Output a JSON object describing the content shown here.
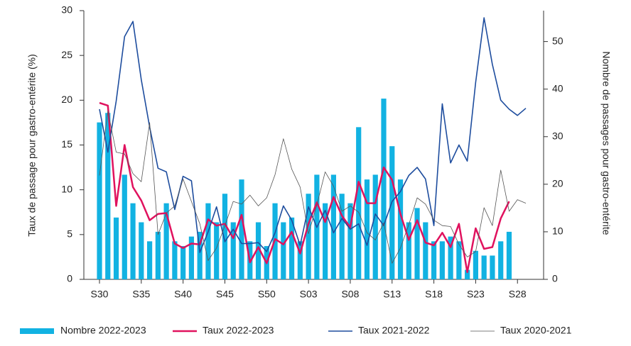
{
  "chart_data": {
    "type": "bar-line",
    "ylabel": "Taux de passage pour gastro-entérite (%)",
    "y2label": "Nombre de passages pour gastro-entérite",
    "categories": [
      "S30",
      null,
      null,
      null,
      null,
      "S35",
      null,
      null,
      null,
      null,
      "S40",
      null,
      null,
      null,
      null,
      "S45",
      null,
      null,
      null,
      null,
      "S50",
      null,
      null,
      null,
      null,
      "S03",
      null,
      null,
      null,
      null,
      "S08",
      null,
      null,
      null,
      null,
      "S13",
      null,
      null,
      null,
      null,
      "S18",
      null,
      null,
      null,
      null,
      "S23",
      null,
      null,
      null,
      null,
      "S28",
      null
    ],
    "ylim": [
      0,
      30
    ],
    "yticks": [
      0,
      5,
      10,
      15,
      20,
      25,
      30
    ],
    "y2lim": [
      0,
      56.5
    ],
    "y2ticks": [
      0,
      10,
      20,
      30,
      40,
      50
    ],
    "series": [
      {
        "name": "Nombre 2022-2023",
        "type": "bar",
        "axis": "y2",
        "color": "#12b2e2",
        "values": [
          33,
          35,
          13,
          22,
          16,
          12,
          8,
          10,
          16,
          8,
          7,
          9,
          10,
          16,
          12,
          18,
          12,
          21,
          8,
          12,
          7,
          16,
          12,
          13,
          8,
          18,
          22,
          16,
          22,
          18,
          16,
          32,
          21,
          22,
          38,
          28,
          21,
          12,
          15,
          12,
          8,
          8,
          9,
          8,
          2,
          6,
          5,
          5,
          8,
          10,
          null,
          null
        ]
      },
      {
        "name": "Taux 2022-2023",
        "type": "line",
        "color": "#e0125e",
        "width": 2.5,
        "values": [
          19.7,
          19.4,
          8.2,
          15.0,
          10.3,
          8.8,
          6.6,
          7.3,
          7.4,
          4.0,
          3.5,
          4.0,
          3.9,
          6.7,
          6.0,
          6.2,
          4.6,
          7.2,
          1.9,
          3.6,
          1.8,
          4.5,
          3.9,
          5.3,
          2.9,
          6.2,
          8.6,
          6.4,
          9.2,
          7.1,
          5.8,
          10.9,
          8.5,
          8.5,
          12.5,
          11.1,
          7.3,
          4.4,
          6.6,
          4.1,
          3.8,
          5.2,
          3.6,
          6.2,
          0.8,
          5.7,
          3.4,
          3.6,
          6.8,
          8.7,
          null,
          null
        ]
      },
      {
        "name": "Taux 2021-2022",
        "type": "line",
        "color": "#1e4d9e",
        "width": 1.6,
        "values": [
          19.0,
          14.2,
          19.9,
          27.1,
          28.8,
          22.3,
          17.0,
          12.4,
          12.0,
          7.8,
          11.5,
          11.0,
          3.0,
          5.3,
          8.1,
          4.2,
          5.6,
          4.0,
          4.0,
          4.1,
          3.1,
          5.2,
          8.2,
          6.6,
          3.8,
          8.1,
          5.8,
          7.7,
          5.2,
          6.8,
          5.6,
          6.2,
          3.8,
          7.3,
          6.0,
          8.7,
          9.8,
          11.6,
          12.5,
          11.2,
          6.0,
          19.6,
          13.0,
          15.0,
          13.2,
          22.0,
          29.2,
          24.0,
          20.0,
          19.0,
          18.3,
          19.1
        ]
      },
      {
        "name": "Taux 2020-2021",
        "type": "line",
        "color": "#555555",
        "width": 0.8,
        "values": [
          11.6,
          18.8,
          14.2,
          14.0,
          11.8,
          10.9,
          17.5,
          5.0,
          7.4,
          8.2,
          11.2,
          8.7,
          6.2,
          2.1,
          3.5,
          6.0,
          8.7,
          8.4,
          9.4,
          8.2,
          9.1,
          11.7,
          15.7,
          12.3,
          10.3,
          5.1,
          8.3,
          12.0,
          10.4,
          7.6,
          8.2,
          7.5,
          5.2,
          4.4,
          6.3,
          1.8,
          3.5,
          6.1,
          9.1,
          8.4,
          6.6,
          6.0,
          5.9,
          3.9,
          2.5,
          3.1,
          8.0,
          6.0,
          12.2,
          7.6,
          8.9,
          8.5
        ]
      }
    ]
  }
}
